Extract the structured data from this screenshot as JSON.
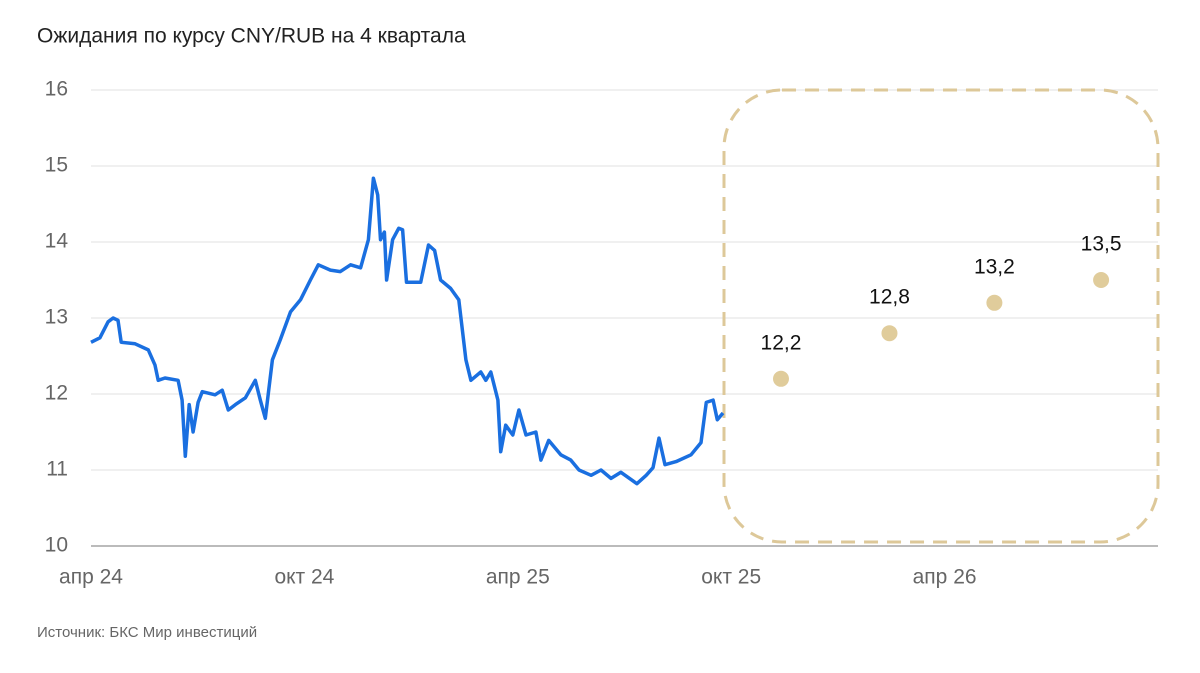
{
  "chart_data": {
    "type": "line",
    "title": "Ожидания по курсу CNY/RUB на 4 квартала",
    "source": "Источник: БКС Мир инвестиций",
    "xlim": [
      0,
      30
    ],
    "xticks": [
      {
        "value": 0,
        "label": "апр 24"
      },
      {
        "value": 6,
        "label": "окт 24"
      },
      {
        "value": 12,
        "label": "апр 25"
      },
      {
        "value": 18,
        "label": "окт 25"
      },
      {
        "value": 24,
        "label": "апр 26"
      }
    ],
    "ylim": [
      10,
      16
    ],
    "yticks": [
      10,
      11,
      12,
      13,
      14,
      15,
      16
    ],
    "grid": true,
    "series": [
      {
        "type": "line",
        "color": "#1a6fe0",
        "x": [
          0,
          0.25,
          0.48,
          0.62,
          0.76,
          0.85,
          1.24,
          1.61,
          1.8,
          1.89,
          2.08,
          2.45,
          2.56,
          2.65,
          2.76,
          2.87,
          3.01,
          3.13,
          3.49,
          3.69,
          3.86,
          4.06,
          4.34,
          4.62,
          4.76,
          4.9,
          5.1,
          5.32,
          5.61,
          5.89,
          6.17,
          6.39,
          6.73,
          7.01,
          7.3,
          7.58,
          7.8,
          7.94,
          8.06,
          8.14,
          8.25,
          8.31,
          8.48,
          8.65,
          8.76,
          8.87,
          9.27,
          9.49,
          9.66,
          9.83,
          10.11,
          10.34,
          10.54,
          10.68,
          10.96,
          11.1,
          11.24,
          11.44,
          11.52,
          11.66,
          11.86,
          12.03,
          12.23,
          12.51,
          12.65,
          12.87,
          13.21,
          13.49,
          13.72,
          14.06,
          14.34,
          14.62,
          14.9,
          15.35,
          15.61,
          15.8,
          15.97,
          16.14,
          16.45,
          16.87,
          17.15,
          17.3,
          17.49,
          17.61,
          17.77
        ],
        "values": [
          12.68,
          12.74,
          12.95,
          13.0,
          12.97,
          12.68,
          12.66,
          12.58,
          12.38,
          12.18,
          12.21,
          12.18,
          11.92,
          11.18,
          11.86,
          11.5,
          11.89,
          12.03,
          11.99,
          12.05,
          11.79,
          11.86,
          11.95,
          12.18,
          11.92,
          11.68,
          12.45,
          12.71,
          13.08,
          13.24,
          13.5,
          13.7,
          13.63,
          13.61,
          13.7,
          13.66,
          14.03,
          14.84,
          14.62,
          14.03,
          14.13,
          13.5,
          14.03,
          14.18,
          14.16,
          13.47,
          13.47,
          13.96,
          13.89,
          13.5,
          13.39,
          13.24,
          12.45,
          12.18,
          12.29,
          12.18,
          12.29,
          11.92,
          11.24,
          11.59,
          11.46,
          11.79,
          11.46,
          11.5,
          11.13,
          11.39,
          11.2,
          11.13,
          11.0,
          10.93,
          11.0,
          10.89,
          10.97,
          10.82,
          10.93,
          11.03,
          11.42,
          11.07,
          11.11,
          11.2,
          11.36,
          11.89,
          11.92,
          11.66,
          11.75
        ]
      },
      {
        "type": "scatter",
        "color": "#e0cc9b",
        "x": [
          19.4,
          22.45,
          25.4,
          28.4
        ],
        "values": [
          12.2,
          12.8,
          13.2,
          13.5
        ],
        "value_labels": [
          "12,2",
          "12,8",
          "13,2",
          "13,5"
        ]
      }
    ]
  }
}
